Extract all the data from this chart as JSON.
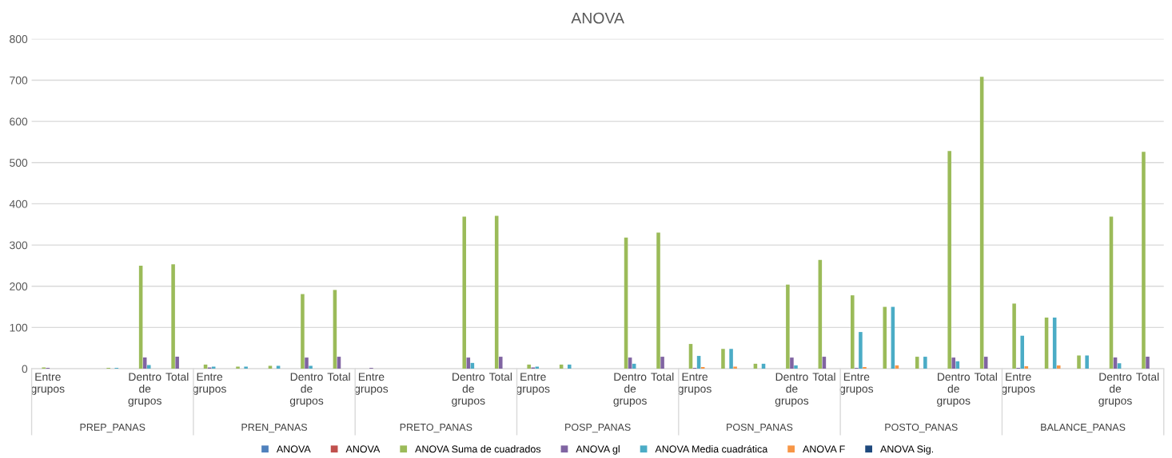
{
  "chart_data": {
    "type": "bar",
    "title": "ANOVA",
    "categories": [
      "Entre grupos",
      null,
      null,
      "Dentro de grupos",
      "Total",
      "Entre grupos",
      null,
      null,
      "Dentro de grupos",
      "Total",
      "Entre grupos",
      null,
      null,
      "Dentro de grupos",
      "Total",
      "Entre grupos",
      null,
      null,
      "Dentro de grupos",
      "Total",
      "Entre grupos",
      null,
      null,
      "Dentro de grupos",
      "Total",
      "Entre grupos",
      null,
      null,
      "Dentro de grupos",
      "Total",
      "Entre grupos",
      null,
      null,
      "Dentro de grupos",
      "Total"
    ],
    "annotations": [
      "PREP_PANAS",
      "PREN_PANAS",
      "PRETO_PANAS",
      "POSP_PANAS",
      "POSN_PANAS",
      "POSTO_PANAS",
      "BALANCE_PANAS"
    ],
    "series": [
      {
        "name": "ANOVA",
        "color": "#4f81bd",
        "values": [
          null,
          null,
          null,
          null,
          null,
          null,
          null,
          null,
          null,
          null,
          null,
          null,
          null,
          null,
          null,
          null,
          null,
          null,
          null,
          null,
          null,
          null,
          null,
          null,
          null,
          null,
          null,
          null,
          null,
          null,
          null,
          null,
          null,
          null,
          null
        ]
      },
      {
        "name": "ANOVA",
        "color": "#c0504d",
        "values": [
          null,
          null,
          null,
          null,
          null,
          null,
          null,
          null,
          null,
          null,
          null,
          null,
          null,
          null,
          null,
          null,
          null,
          null,
          null,
          null,
          null,
          null,
          null,
          null,
          null,
          null,
          null,
          null,
          null,
          null,
          null,
          null,
          null,
          null,
          null
        ]
      },
      {
        "name": "ANOVA Suma de cuadrados",
        "color": "#9bbb59",
        "values": [
          3,
          null,
          2,
          250,
          253,
          10,
          5,
          7,
          181,
          191,
          null,
          null,
          null,
          369,
          371,
          10,
          10,
          null,
          318,
          330,
          60,
          48,
          12,
          204,
          264,
          178,
          150,
          29,
          528,
          708,
          158,
          124,
          32,
          369,
          526
        ]
      },
      {
        "name": "ANOVA gl",
        "color": "#8064a2",
        "values": [
          2,
          null,
          null,
          27,
          29,
          3,
          null,
          null,
          27,
          29,
          2,
          null,
          null,
          27,
          29,
          3,
          null,
          null,
          27,
          29,
          2,
          null,
          null,
          27,
          29,
          2,
          null,
          null,
          27,
          29,
          2,
          null,
          null,
          27,
          29
        ]
      },
      {
        "name": "ANOVA Media cuadrática",
        "color": "#4bacc6",
        "values": [
          null,
          null,
          2,
          9,
          null,
          5,
          5,
          7,
          7,
          null,
          null,
          null,
          null,
          14,
          null,
          5,
          10,
          null,
          12,
          null,
          31,
          48,
          12,
          8,
          null,
          89,
          150,
          29,
          18,
          null,
          80,
          124,
          32,
          13,
          null
        ]
      },
      {
        "name": "ANOVA F",
        "color": "#f79646",
        "values": [
          null,
          null,
          null,
          null,
          null,
          null,
          null,
          null,
          null,
          null,
          null,
          null,
          null,
          null,
          null,
          null,
          null,
          null,
          null,
          null,
          4,
          5,
          null,
          null,
          null,
          4,
          8,
          null,
          null,
          null,
          6,
          8,
          null,
          null,
          null
        ]
      },
      {
        "name": "ANOVA Sig.",
        "color": "#1f497d",
        "values": [
          null,
          null,
          null,
          null,
          null,
          null,
          null,
          null,
          null,
          null,
          null,
          null,
          null,
          null,
          null,
          null,
          null,
          null,
          null,
          null,
          null,
          null,
          null,
          null,
          null,
          null,
          null,
          null,
          null,
          null,
          null,
          null,
          null,
          null,
          null
        ]
      }
    ],
    "ylim": [
      0,
      800
    ],
    "yticks": [
      0,
      100,
      200,
      300,
      400,
      500,
      600,
      700,
      800
    ],
    "grid": "y",
    "legend": "bottom"
  }
}
